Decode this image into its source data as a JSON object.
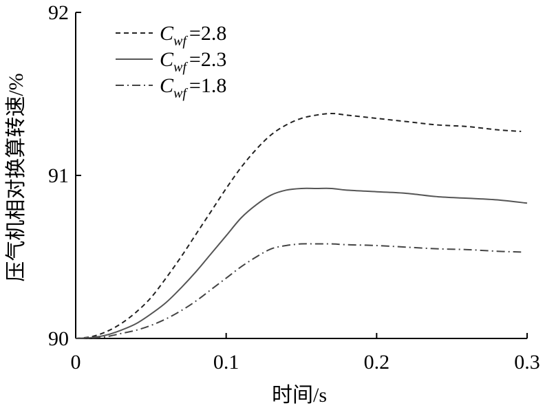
{
  "chart_data": {
    "type": "line",
    "title": "",
    "xlabel": "时间/s",
    "ylabel": "压气机相对换算转速/%",
    "xlim": [
      0,
      0.3
    ],
    "ylim": [
      90,
      92
    ],
    "xticks": [
      "0",
      "0.1",
      "0.2",
      "0.3"
    ],
    "yticks": [
      "90",
      "91",
      "92"
    ],
    "grid": false,
    "legend_position": "top-left",
    "series": [
      {
        "name": "C_wf=2.8",
        "legend_main": "C",
        "legend_sub": "wf",
        "legend_value": "=2.8",
        "style": "dashed",
        "color": "#222222",
        "x": [
          0,
          0.01,
          0.02,
          0.03,
          0.04,
          0.05,
          0.06,
          0.07,
          0.08,
          0.09,
          0.1,
          0.11,
          0.12,
          0.13,
          0.14,
          0.15,
          0.16,
          0.17,
          0.18,
          0.2,
          0.22,
          0.24,
          0.26,
          0.28,
          0.296
        ],
        "y": [
          90.0,
          90.01,
          90.04,
          90.09,
          90.16,
          90.25,
          90.37,
          90.5,
          90.64,
          90.78,
          90.92,
          91.05,
          91.16,
          91.25,
          91.31,
          91.35,
          91.37,
          91.38,
          91.37,
          91.35,
          91.33,
          91.31,
          91.3,
          91.28,
          91.27
        ]
      },
      {
        "name": "C_wf=2.3",
        "legend_main": "C",
        "legend_sub": "wf",
        "legend_value": "=2.3",
        "style": "solid",
        "color": "#555555",
        "x": [
          0,
          0.01,
          0.02,
          0.03,
          0.04,
          0.05,
          0.06,
          0.07,
          0.08,
          0.09,
          0.1,
          0.11,
          0.12,
          0.13,
          0.14,
          0.15,
          0.16,
          0.17,
          0.18,
          0.2,
          0.22,
          0.24,
          0.26,
          0.28,
          0.3
        ],
        "y": [
          90.0,
          90.005,
          90.02,
          90.05,
          90.09,
          90.15,
          90.22,
          90.31,
          90.41,
          90.52,
          90.63,
          90.74,
          90.82,
          90.88,
          90.91,
          90.92,
          90.92,
          90.92,
          90.91,
          90.9,
          90.89,
          90.87,
          90.86,
          90.85,
          90.83
        ]
      },
      {
        "name": "C_wf=1.8",
        "legend_main": "C",
        "legend_sub": "wf",
        "legend_value": "=1.8",
        "style": "dashdot",
        "color": "#444444",
        "x": [
          0,
          0.01,
          0.02,
          0.03,
          0.04,
          0.05,
          0.06,
          0.07,
          0.08,
          0.09,
          0.1,
          0.11,
          0.12,
          0.13,
          0.14,
          0.15,
          0.16,
          0.17,
          0.18,
          0.2,
          0.22,
          0.24,
          0.26,
          0.28,
          0.296
        ],
        "y": [
          90.0,
          90.002,
          90.01,
          90.03,
          90.05,
          90.08,
          90.12,
          90.17,
          90.23,
          90.3,
          90.37,
          90.44,
          90.5,
          90.55,
          90.57,
          90.58,
          90.58,
          90.58,
          90.575,
          90.57,
          90.56,
          90.55,
          90.545,
          90.535,
          90.53
        ]
      }
    ]
  }
}
